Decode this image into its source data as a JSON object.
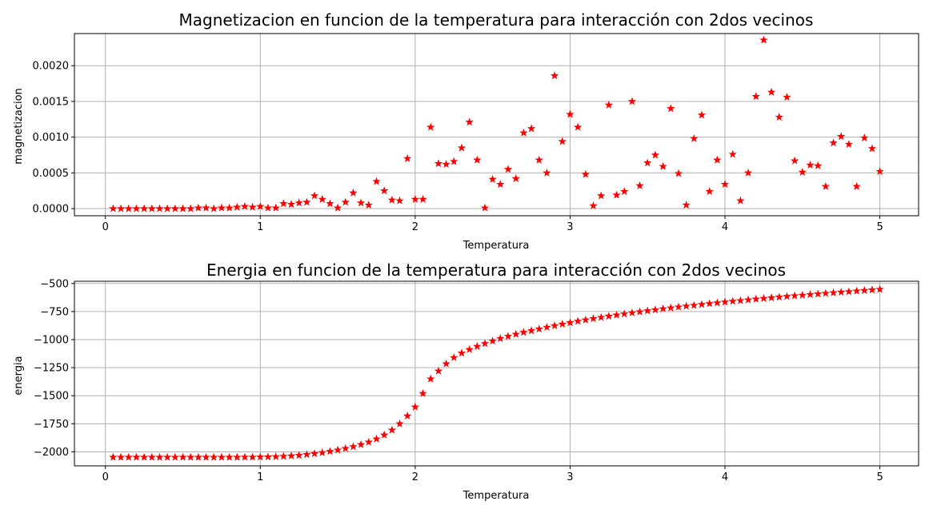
{
  "chart_data": [
    {
      "type": "scatter",
      "title": "Magnetizacion en funcion de la temperatura para interacción con 2dos vecinos",
      "xlabel": "Temperatura",
      "ylabel": "magnetizacion",
      "xlim": [
        -0.2,
        5.25
      ],
      "ylim": [
        -0.0001,
        0.00245
      ],
      "xticks": [
        0,
        1,
        2,
        3,
        4,
        5
      ],
      "xtick_labels": [
        "0",
        "1",
        "2",
        "3",
        "4",
        "5"
      ],
      "yticks": [
        0,
        0.0005,
        0.001,
        0.0015,
        0.002
      ],
      "ytick_labels": [
        "0.0000",
        "0.0005",
        "0.0010",
        "0.0015",
        "0.0020"
      ],
      "grid": true,
      "marker": "star",
      "color": "#ff0000",
      "x": [
        0.05,
        0.1,
        0.15,
        0.2,
        0.25,
        0.3,
        0.35,
        0.4,
        0.45,
        0.5,
        0.55,
        0.6,
        0.65,
        0.7,
        0.75,
        0.8,
        0.85,
        0.9,
        0.95,
        1.0,
        1.05,
        1.1,
        1.15,
        1.2,
        1.25,
        1.3,
        1.35,
        1.4,
        1.45,
        1.5,
        1.55,
        1.6,
        1.65,
        1.7,
        1.75,
        1.8,
        1.85,
        1.9,
        1.95,
        2.0,
        2.05,
        2.1,
        2.15,
        2.2,
        2.25,
        2.3,
        2.35,
        2.4,
        2.45,
        2.5,
        2.55,
        2.6,
        2.65,
        2.7,
        2.75,
        2.8,
        2.85,
        2.9,
        2.95,
        3.0,
        3.05,
        3.1,
        3.15,
        3.2,
        3.25,
        3.3,
        3.35,
        3.4,
        3.45,
        3.5,
        3.55,
        3.6,
        3.65,
        3.7,
        3.75,
        3.8,
        3.85,
        3.9,
        3.95,
        4.0,
        4.05,
        4.1,
        4.15,
        4.2,
        4.25,
        4.3,
        4.35,
        4.4,
        4.45,
        4.5,
        4.55,
        4.6,
        4.65,
        4.7,
        4.75,
        4.8,
        4.85,
        4.9,
        4.95,
        5.0
      ],
      "y": [
        0.0,
        0.0,
        0.0,
        0.0,
        0.0,
        0.0,
        0.0,
        0.0,
        0.0,
        0.0,
        0.0,
        1e-05,
        1e-05,
        0.0,
        1e-05,
        1e-05,
        2e-05,
        3e-05,
        2e-05,
        3e-05,
        1e-05,
        1e-05,
        7e-05,
        6e-05,
        8e-05,
        9e-05,
        0.00018,
        0.00013,
        7e-05,
        1e-05,
        9e-05,
        0.00022,
        8e-05,
        5e-05,
        0.00038,
        0.00025,
        0.00012,
        0.00011,
        0.0007,
        0.00013,
        0.00013,
        0.00114,
        0.00063,
        0.00062,
        0.00066,
        0.00085,
        0.00121,
        0.00068,
        1e-05,
        0.00041,
        0.00034,
        0.00055,
        0.00042,
        0.00106,
        0.00112,
        0.00068,
        0.0005,
        0.00186,
        0.00094,
        0.00132,
        0.00114,
        0.00048,
        4e-05,
        0.00018,
        0.00145,
        0.00019,
        0.00024,
        0.0015,
        0.00032,
        0.00064,
        0.00075,
        0.00059,
        0.0014,
        0.00049,
        5e-05,
        0.00098,
        0.00131,
        0.00024,
        0.00068,
        0.00034,
        0.00076,
        0.00011,
        0.0005,
        0.00157,
        0.00236,
        0.00163,
        0.00128,
        0.00156,
        0.00067,
        0.00051,
        0.00061,
        0.0006,
        0.00031,
        0.00092,
        0.00101,
        0.0009,
        0.00031,
        0.00099,
        0.00084,
        0.00052
      ]
    },
    {
      "type": "scatter",
      "title": "Energia en funcion de la temperatura para interacción con 2dos vecinos",
      "xlabel": "Temperatura",
      "ylabel": "energia",
      "xlim": [
        -0.2,
        5.25
      ],
      "ylim": [
        -2125,
        -480
      ],
      "xticks": [
        0,
        1,
        2,
        3,
        4,
        5
      ],
      "xtick_labels": [
        "0",
        "1",
        "2",
        "3",
        "4",
        "5"
      ],
      "yticks": [
        -2000,
        -1750,
        -1500,
        -1250,
        -1000,
        -750,
        -500
      ],
      "ytick_labels": [
        "−2000",
        "−1750",
        "−1500",
        "−1250",
        "−1000",
        "−750",
        "−500"
      ],
      "grid": true,
      "marker": "star",
      "color": "#ff0000",
      "x": [
        0.05,
        0.1,
        0.15,
        0.2,
        0.25,
        0.3,
        0.35,
        0.4,
        0.45,
        0.5,
        0.55,
        0.6,
        0.65,
        0.7,
        0.75,
        0.8,
        0.85,
        0.9,
        0.95,
        1.0,
        1.05,
        1.1,
        1.15,
        1.2,
        1.25,
        1.3,
        1.35,
        1.4,
        1.45,
        1.5,
        1.55,
        1.6,
        1.65,
        1.7,
        1.75,
        1.8,
        1.85,
        1.9,
        1.95,
        2.0,
        2.05,
        2.1,
        2.15,
        2.2,
        2.25,
        2.3,
        2.35,
        2.4,
        2.45,
        2.5,
        2.55,
        2.6,
        2.65,
        2.7,
        2.75,
        2.8,
        2.85,
        2.9,
        2.95,
        3.0,
        3.05,
        3.1,
        3.15,
        3.2,
        3.25,
        3.3,
        3.35,
        3.4,
        3.45,
        3.5,
        3.55,
        3.6,
        3.65,
        3.7,
        3.75,
        3.8,
        3.85,
        3.9,
        3.95,
        4.0,
        4.05,
        4.1,
        4.15,
        4.2,
        4.25,
        4.3,
        4.35,
        4.4,
        4.45,
        4.5,
        4.55,
        4.6,
        4.65,
        4.7,
        4.75,
        4.8,
        4.85,
        4.9,
        4.95,
        5.0
      ],
      "y": [
        -2048,
        -2048,
        -2048,
        -2048,
        -2048,
        -2048,
        -2048,
        -2048,
        -2048,
        -2048,
        -2048,
        -2048,
        -2048,
        -2048,
        -2048,
        -2048,
        -2048,
        -2047,
        -2047,
        -2046,
        -2045,
        -2043,
        -2040,
        -2036,
        -2031,
        -2024,
        -2016,
        -2007,
        -1996,
        -1984,
        -1970,
        -1954,
        -1935,
        -1913,
        -1885,
        -1850,
        -1806,
        -1750,
        -1680,
        -1600,
        -1480,
        -1350,
        -1280,
        -1215,
        -1160,
        -1120,
        -1088,
        -1060,
        -1035,
        -1012,
        -990,
        -970,
        -952,
        -935,
        -920,
        -905,
        -890,
        -876,
        -862,
        -849,
        -836,
        -824,
        -813,
        -802,
        -791,
        -781,
        -771,
        -761,
        -752,
        -743,
        -734,
        -725,
        -717,
        -709,
        -701,
        -694,
        -686,
        -679,
        -672,
        -665,
        -658,
        -652,
        -645,
        -639,
        -633,
        -627,
        -621,
        -615,
        -609,
        -604,
        -598,
        -593,
        -587,
        -582,
        -577,
        -572,
        -567,
        -562,
        -557,
        -552
      ]
    }
  ]
}
